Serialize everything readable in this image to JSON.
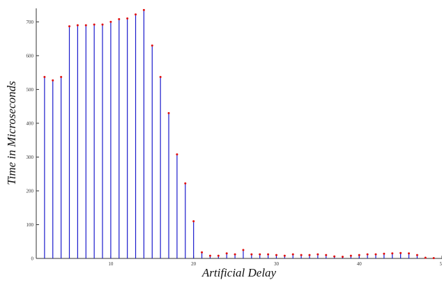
{
  "chart_data": {
    "type": "stem",
    "xlabel": "Artificial Delay",
    "ylabel": "Time in Microseconds",
    "x": [
      2,
      3,
      4,
      5,
      6,
      7,
      8,
      9,
      10,
      11,
      12,
      13,
      14,
      15,
      16,
      17,
      18,
      19,
      20,
      21,
      22,
      23,
      24,
      25,
      26,
      27,
      28,
      29,
      30,
      31,
      32,
      33,
      34,
      35,
      36,
      37,
      38,
      39,
      40,
      41,
      42,
      43,
      44,
      45,
      46,
      47,
      48,
      49
    ],
    "series": [
      {
        "stem_color": "#1a1acc",
        "point_color": "#e01010",
        "values": [
          537,
          527,
          537,
          687,
          690,
          690,
          692,
          692,
          700,
          708,
          710,
          722,
          735,
          630,
          537,
          430,
          308,
          222,
          110,
          18,
          8,
          8,
          15,
          12,
          25,
          12,
          12,
          12,
          10,
          8,
          12,
          10,
          10,
          12,
          10,
          6,
          5,
          8,
          10,
          12,
          12,
          14,
          15,
          16,
          15,
          10,
          2,
          1
        ]
      }
    ],
    "xlim": [
      1,
      50
    ],
    "xticks": [
      10,
      20,
      30,
      40,
      50
    ],
    "ylim": [
      0,
      740
    ],
    "yticks": [
      0,
      100,
      200,
      300,
      400,
      500,
      600,
      700
    ]
  }
}
